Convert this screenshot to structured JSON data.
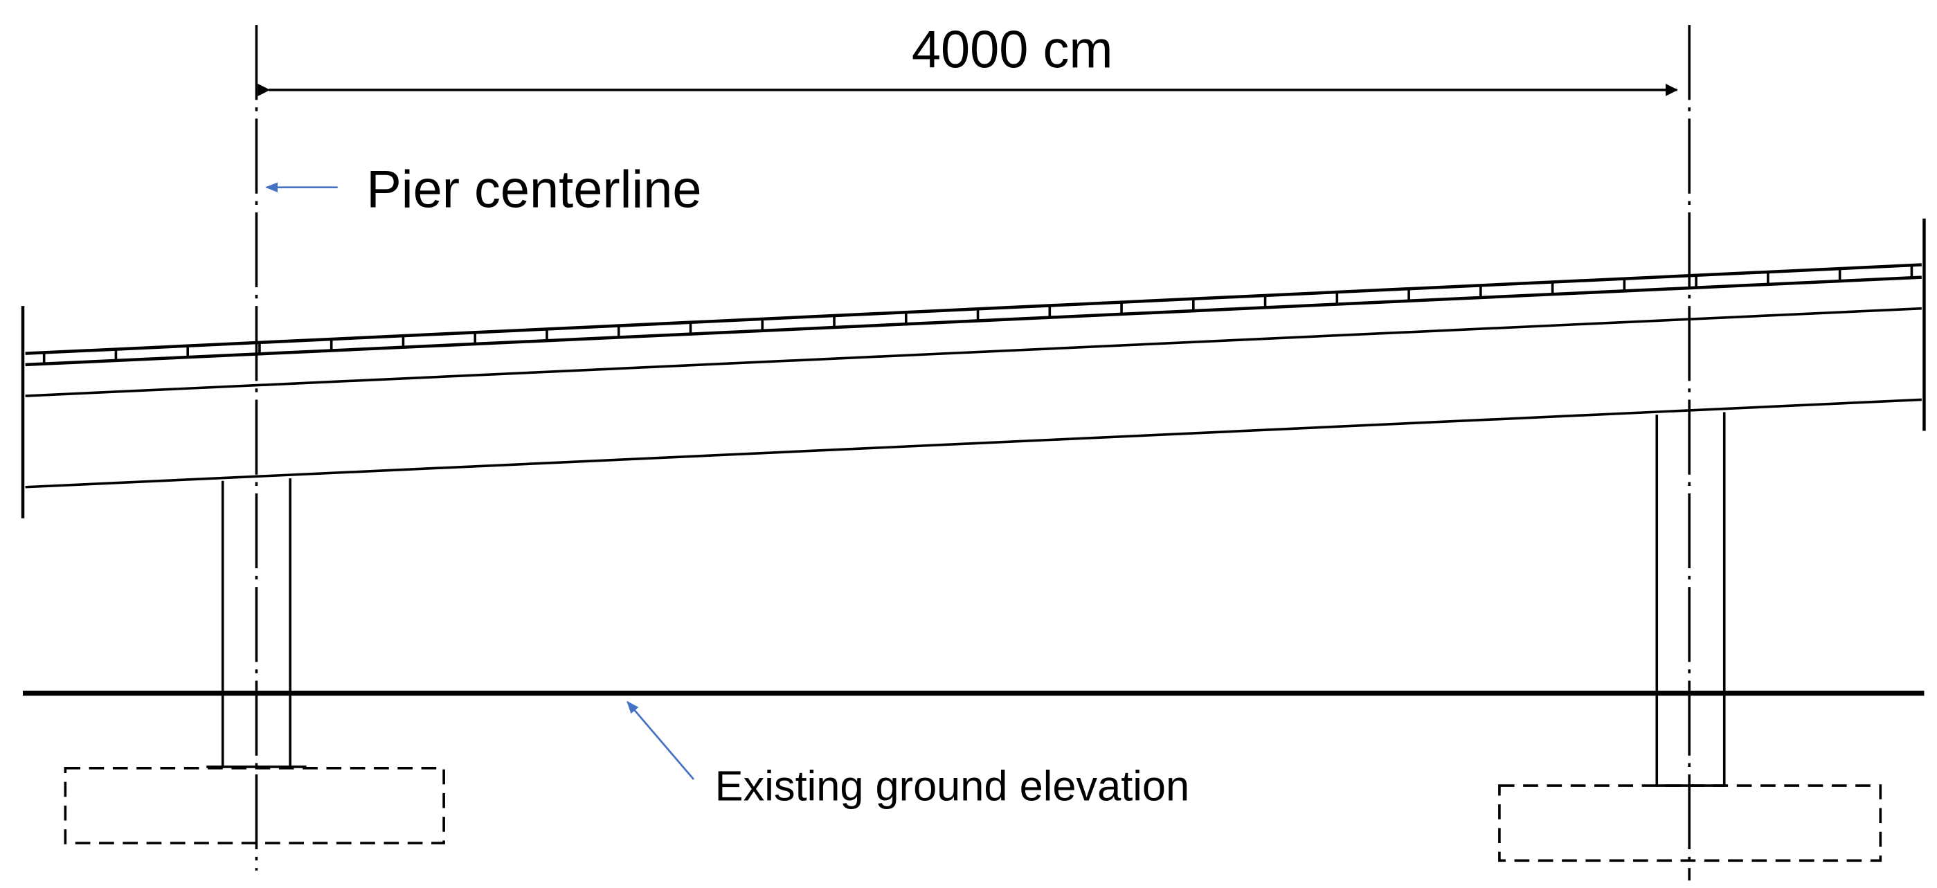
{
  "dimension": {
    "label": "4000 cm"
  },
  "labels": {
    "pier_centerline": "Pier centerline",
    "ground": "Existing ground elevation"
  },
  "colors": {
    "line": "#000000",
    "annotation_arrow": "#4472C4"
  }
}
